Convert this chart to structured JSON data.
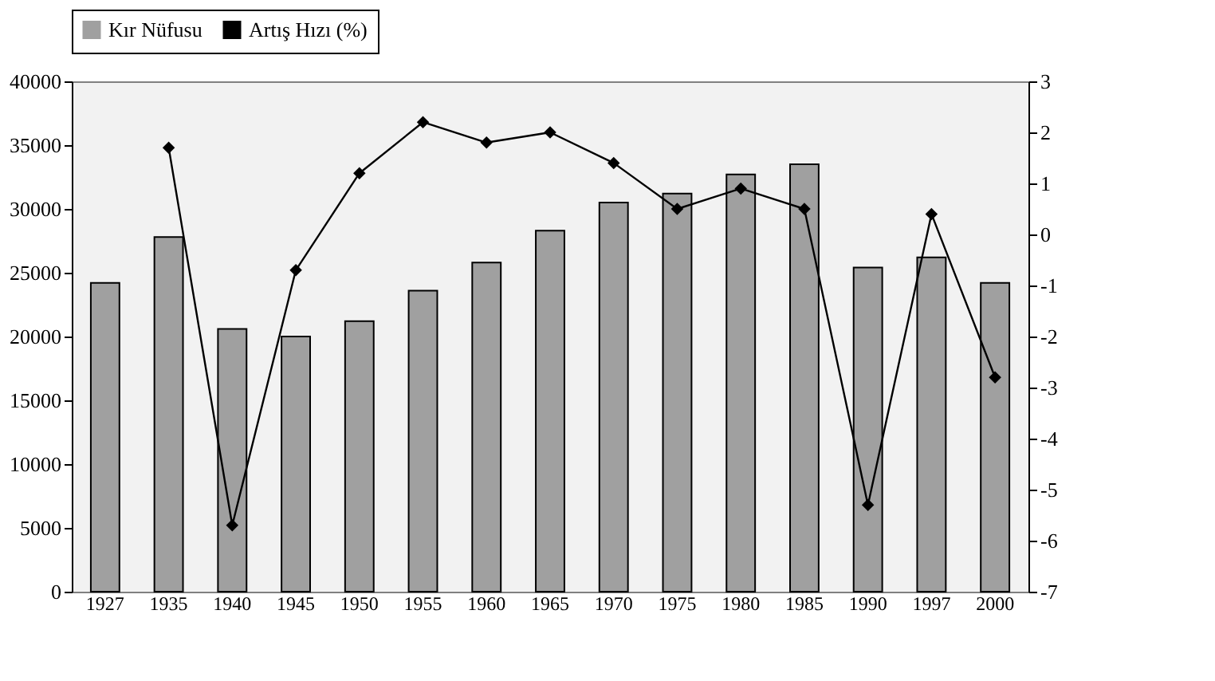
{
  "chart_data": {
    "type": "bar",
    "categories": [
      "1927",
      "1935",
      "1940",
      "1945",
      "1950",
      "1955",
      "1960",
      "1965",
      "1970",
      "1975",
      "1980",
      "1985",
      "1990",
      "1997",
      "2000"
    ],
    "series": [
      {
        "name": "Kır Nüfusu",
        "color": "#a0a0a0",
        "values": [
          24200,
          27800,
          20600,
          20000,
          21200,
          23600,
          25800,
          28300,
          30500,
          31200,
          32700,
          33500,
          25400,
          26200,
          24200
        ]
      },
      {
        "name": "Artış Hızı (%)",
        "type": "line",
        "axis": "y2",
        "color": "#000000",
        "marker": "diamond",
        "values": [
          null,
          1.7,
          -5.7,
          -0.7,
          1.2,
          2.2,
          1.8,
          2.0,
          1.4,
          0.5,
          0.9,
          0.5,
          -5.3,
          0.4,
          -2.8
        ]
      }
    ],
    "ylim": [
      0,
      40000
    ],
    "yticks": [
      0,
      5000,
      10000,
      15000,
      20000,
      25000,
      30000,
      35000,
      40000
    ],
    "y2lim": [
      -7,
      3
    ],
    "y2ticks": [
      -7,
      -6,
      -5,
      -4,
      -3,
      -2,
      -1,
      0,
      1,
      2,
      3
    ],
    "grid": false,
    "legend": "top"
  }
}
